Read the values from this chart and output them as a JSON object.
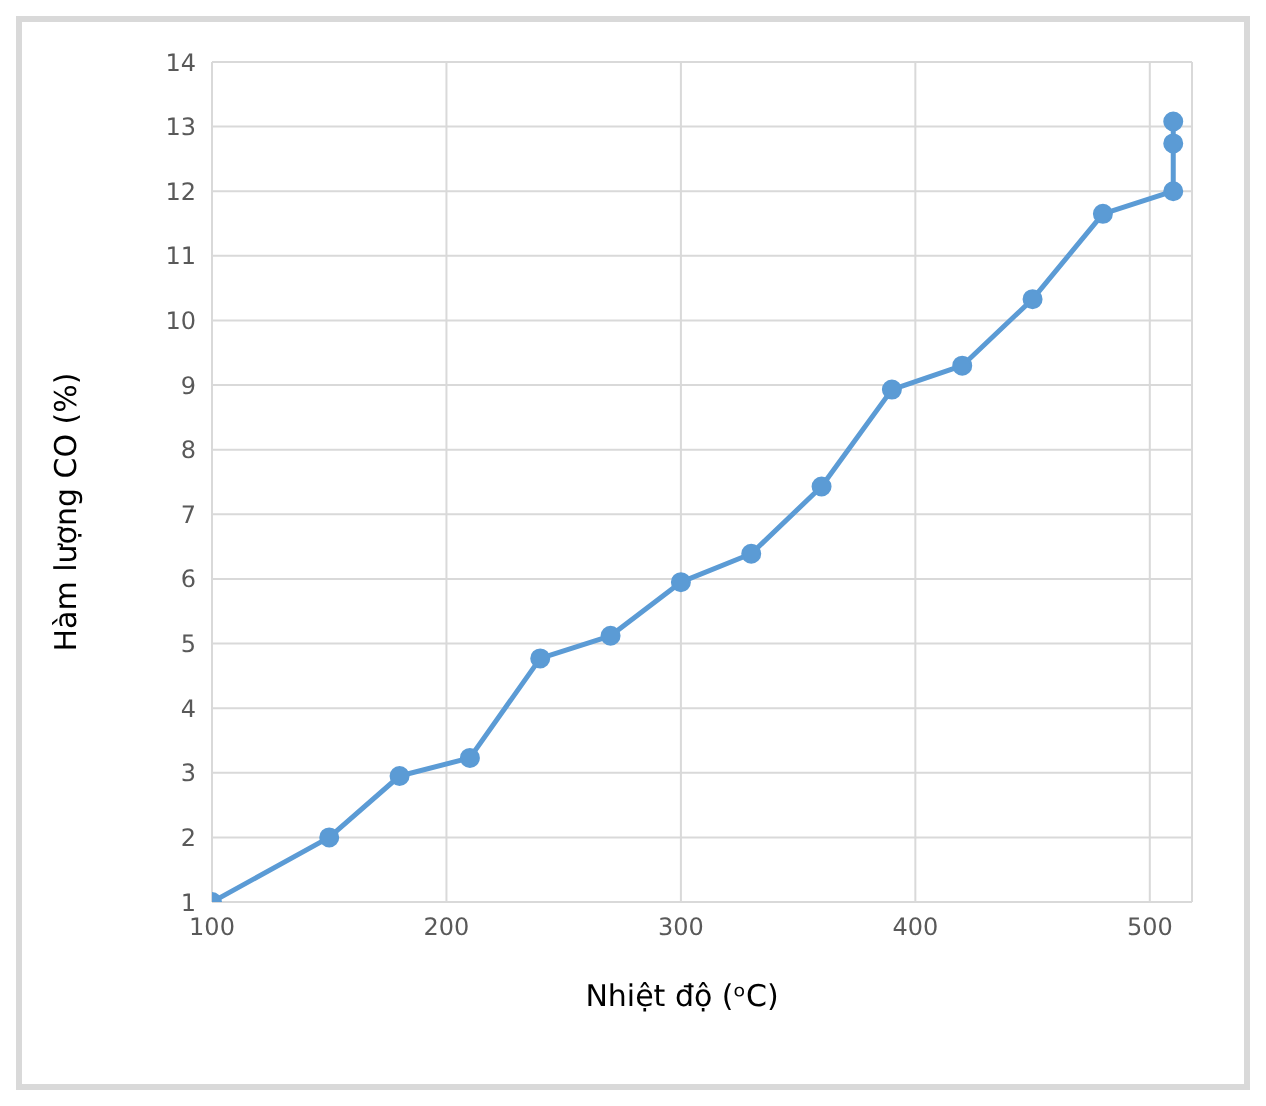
{
  "chart_data": {
    "type": "line",
    "xlabel": "Nhiệt độ (ᵒC)",
    "ylabel": "Hàm lượng CO (%)",
    "x": [
      100,
      150,
      180,
      210,
      240,
      270,
      300,
      330,
      360,
      390,
      420,
      450,
      480,
      510,
      510,
      510
    ],
    "series": [
      {
        "color": "#5b9bd5",
        "values": [
          1,
          2,
          2.95,
          3.23,
          4.77,
          5.12,
          5.95,
          6.39,
          7.43,
          8.93,
          9.3,
          10.33,
          11.65,
          12,
          12.74,
          13.08
        ]
      }
    ],
    "xlim": [
      100,
      518
    ],
    "xticks": [
      100,
      200,
      300,
      400,
      500
    ],
    "ylim": [
      1,
      14
    ],
    "yticks": [
      1,
      2,
      3,
      4,
      5,
      6,
      7,
      8,
      9,
      10,
      11,
      12,
      13,
      14
    ],
    "grid": true,
    "marker": "circle",
    "line_style": "solid"
  }
}
